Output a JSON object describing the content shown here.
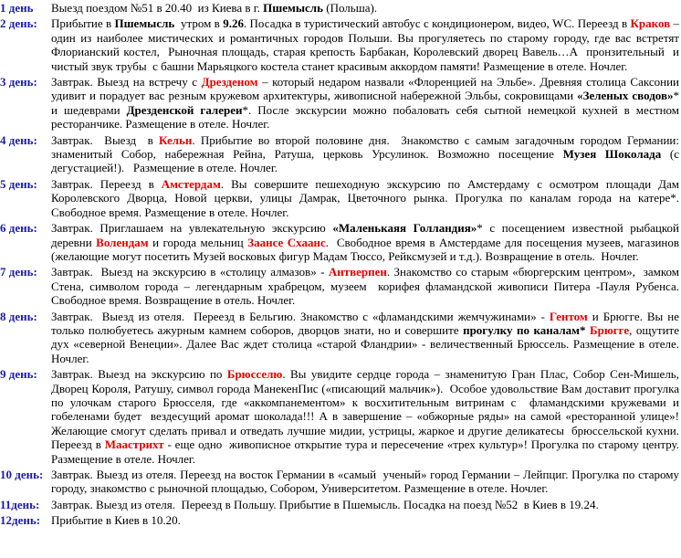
{
  "days": [
    {
      "label": "1 день",
      "segments": [
        {
          "text": "Выезд поездом №51 в 20.40  из Киева в г. "
        },
        {
          "text": "Пшемысль",
          "style": "bold"
        },
        {
          "text": " (Польша)."
        }
      ]
    },
    {
      "label": "2 день:",
      "segments": [
        {
          "text": "Прибытие в "
        },
        {
          "text": "Пшемысль",
          "style": "bold"
        },
        {
          "text": "  утром в "
        },
        {
          "text": "9.26",
          "style": "bold"
        },
        {
          "text": ". Посадка в туристический автобус с кондиционером, видео, WC. Переезд в "
        },
        {
          "text": "Краков",
          "style": "bold-red"
        },
        {
          "text": " – один из наиболее мистических и романтичных городов Польши. Вы прогуляетесь по старому городу, где вас встретят  Флорианский костел,  Рыночная площадь, старая крепость Барбакан, Королевский дворец Вавель…А  пронзительный  и чистый звук трубы  с башни Марьяцкого костела станет красивым аккордом памяти! Размещение в отеле. Ночлег."
        }
      ]
    },
    {
      "label": "3 день:",
      "segments": [
        {
          "text": "Завтрак. Выезд на встречу с "
        },
        {
          "text": "Дрезденом",
          "style": "bold-red"
        },
        {
          "text": " – который недаром назвали «Флоренцией на Эльбе». Древняя столица Саксонии удивит и порадует вас резным кружевом архитектуры, живописной набережной Эльбы, сокровищами "
        },
        {
          "text": "«Зеленых сводов»",
          "style": "bold"
        },
        {
          "text": "* и шедеврами "
        },
        {
          "text": "Дрезденской галереи",
          "style": "bold"
        },
        {
          "text": "*. После экскурсии можно побаловать себя сытной немецкой кухней в местном ресторанчике. Размещение в отеле. Ночлег."
        }
      ]
    },
    {
      "label": "4 день:",
      "segments": [
        {
          "text": "Завтрак.  Выезд  в "
        },
        {
          "text": "Кельн",
          "style": "bold-red"
        },
        {
          "text": ". Прибытие во второй половине дня.  Знакомство с самым загадочным городом Германии: знаменитый Собор, набережная Рейна, Ратуша, церковь Урсулинок. Возможно посещение "
        },
        {
          "text": "Музея Шоколада",
          "style": "bold"
        },
        {
          "text": " (с дегустацией!).   Размещение в отеле. Ночлег."
        }
      ]
    },
    {
      "label": "5 день:",
      "segments": [
        {
          "text": "Завтрак. Переезд в "
        },
        {
          "text": "Амстердам",
          "style": "bold-red"
        },
        {
          "text": ". Вы совершите пешеходную экскурсию по Амстердаму с осмотром площади Дам Королевского Дворца, Новой церкви, улицы Дамрак, Цветочного рынка. Прогулка по каналам города на катере*.  Свободное время. Размещение в отеле. Ночлег."
        }
      ]
    },
    {
      "label": "6 день:",
      "segments": [
        {
          "text": "Завтрак. Приглашаем на увлекательную экскурсию "
        },
        {
          "text": "«Маленькаяя Голландия»",
          "style": "bold"
        },
        {
          "text": "* с посещением известной рыбацкой деревни "
        },
        {
          "text": "Волендам",
          "style": "bold-red"
        },
        {
          "text": " и города мельниц "
        },
        {
          "text": "Заансе Схаанс",
          "style": "bold-red"
        },
        {
          "text": ".  Свободное время в Амстердаме для посещения музеев, магазинов (желающие могут посетить Музей восковых фигур Мадам Тюссо, Рейксмузей и т.д.). Возвращение в отель.  Ночлег."
        }
      ]
    },
    {
      "label": "7 день:",
      "segments": [
        {
          "text": "Завтрак.  Выезд на экскурсию в «столицу алмазов» - "
        },
        {
          "text": "Антверпен",
          "style": "bold-red"
        },
        {
          "text": ". Знакомство со старым «бюргерским центром»,  замком Стена, символом города – легендарным храбрецом, музеем  корифея фламандской живописи Питера -Пауля Рубенса. Свободное время. Возвращение в отель. Ночлег."
        }
      ]
    },
    {
      "label": "8 день:",
      "segments": [
        {
          "text": "Завтрак.  Выезд из отеля.  Переезд в Бельгию. Знакомство с «фламандскими жемчужинами» - "
        },
        {
          "text": "Гентом",
          "style": "bold-red"
        },
        {
          "text": " и Брюгге. Вы не только полюбуетесь ажурным камнем соборов, дворцов знати, но и совершите "
        },
        {
          "text": "прогулку по каналам*",
          "style": "bold"
        },
        {
          "text": " "
        },
        {
          "text": "Брюгге",
          "style": "bold-red"
        },
        {
          "text": ", ощутите дух «северной Венеции». Далее Вас ждет столица «старой Фландрии» - величественный Брюссель. Размещение в отеле. Ночлег."
        }
      ]
    },
    {
      "label": "9 день:",
      "segments": [
        {
          "text": "Завтрак. Выезд на экскурсию по "
        },
        {
          "text": "Брюсселю",
          "style": "bold-red"
        },
        {
          "text": ". Вы увидите сердце города – знаменитую Гран Плас, Собор Сен-Мишель,  Дворец Короля, Ратушу, символ города МанекенПис («писающий мальчик»).  Особое удовольствие Вам доставит прогулка по улочкам старого Брюсселя, где «аккомпанементом» к восхитительным витринам с  фламандскими кружевами и гобеленами будет  вездесущий аромат шоколада!!! А в завершение – «обжорные ряды» на самой «ресторанной улице»! Желающие смогут сделать привал и отведать лучшие мидии, устрицы, жаркое и другие деликатесы  брюссельской кухни. Переезд в "
        },
        {
          "text": "Маастрихт",
          "style": "bold-red"
        },
        {
          "text": " - еще одно  живописное открытие тура и пересечение «трех культур»! Прогулка по старому центру. Размещение в отеле. Ночлег."
        }
      ]
    },
    {
      "label": "10 день:",
      "segments": [
        {
          "text": "Завтрак. Выезд из отеля. Переезд на восток Германии в «самый  ученый» город Германии – Лейпциг. Прогулка по старому городу, знакомство с рыночной площадью, Собором, Университетом. Размещение в отеле. Ночлег."
        }
      ]
    },
    {
      "label": "11день:",
      "segments": [
        {
          "text": "Завтрак. Выезд из отеля.  Переезд в Польшу. Прибытие в Пшемысль. Посадка на поезд №52  в Киев в 19.24."
        }
      ]
    },
    {
      "label": "12день:",
      "segments": [
        {
          "text": "Прибытие в Киев в 10.20."
        }
      ]
    }
  ]
}
